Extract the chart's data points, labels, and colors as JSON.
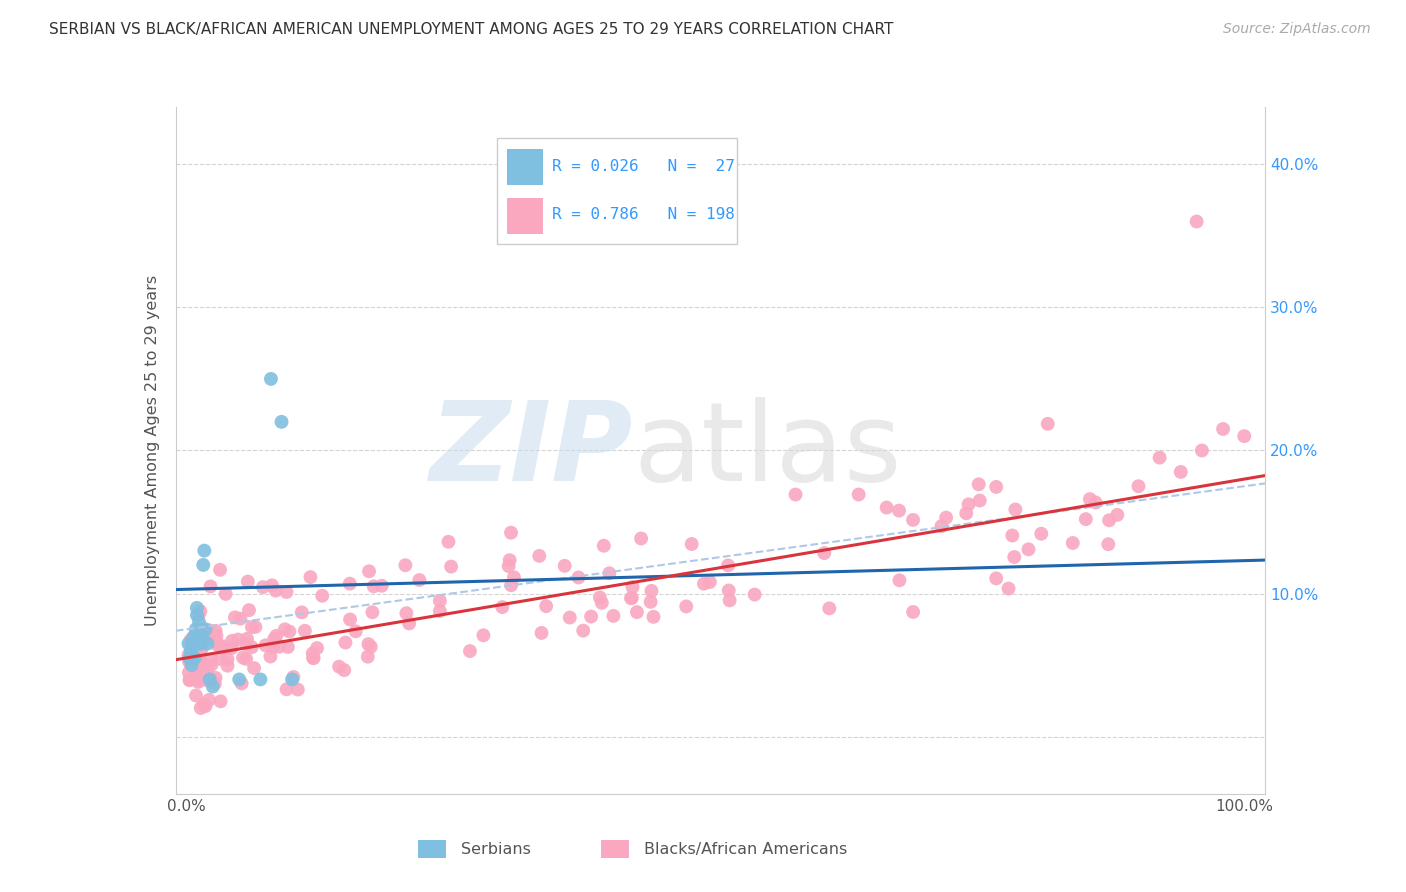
{
  "title": "SERBIAN VS BLACK/AFRICAN AMERICAN UNEMPLOYMENT AMONG AGES 25 TO 29 YEARS CORRELATION CHART",
  "source": "Source: ZipAtlas.com",
  "ylabel": "Unemployment Among Ages 25 to 29 years",
  "serbian_R": 0.026,
  "serbian_N": 27,
  "black_R": 0.786,
  "black_N": 198,
  "serbian_color": "#7fbfdf",
  "black_color": "#f9a8c0",
  "serbian_line_color": "#2166ac",
  "black_line_color": "#d9343c",
  "dashed_line_color": "#b0c8e8",
  "legend_R1": "R = 0.026",
  "legend_N1": "N =  27",
  "legend_R2": "R = 0.786",
  "legend_N2": "N = 198",
  "label_serbian": "Serbians",
  "label_black": "Blacks/African Americans",
  "serbian_line_intercept": 0.103,
  "serbian_line_slope": 0.02,
  "black_line_intercept": 0.055,
  "black_line_slope": 0.125,
  "dashed_line_intercept": 0.075,
  "dashed_line_slope": 0.1,
  "xlim": [
    -0.01,
    1.02
  ],
  "ylim": [
    -0.04,
    0.44
  ],
  "yticks": [
    0.0,
    0.1,
    0.2,
    0.3,
    0.4
  ],
  "ytick_labels_right": [
    "",
    "10.0%",
    "20.0%",
    "30.0%",
    "40.0%"
  ],
  "xtick_labels": [
    "0.0%",
    "",
    "",
    "",
    "",
    "",
    "",
    "",
    "",
    "",
    "100.0%"
  ]
}
